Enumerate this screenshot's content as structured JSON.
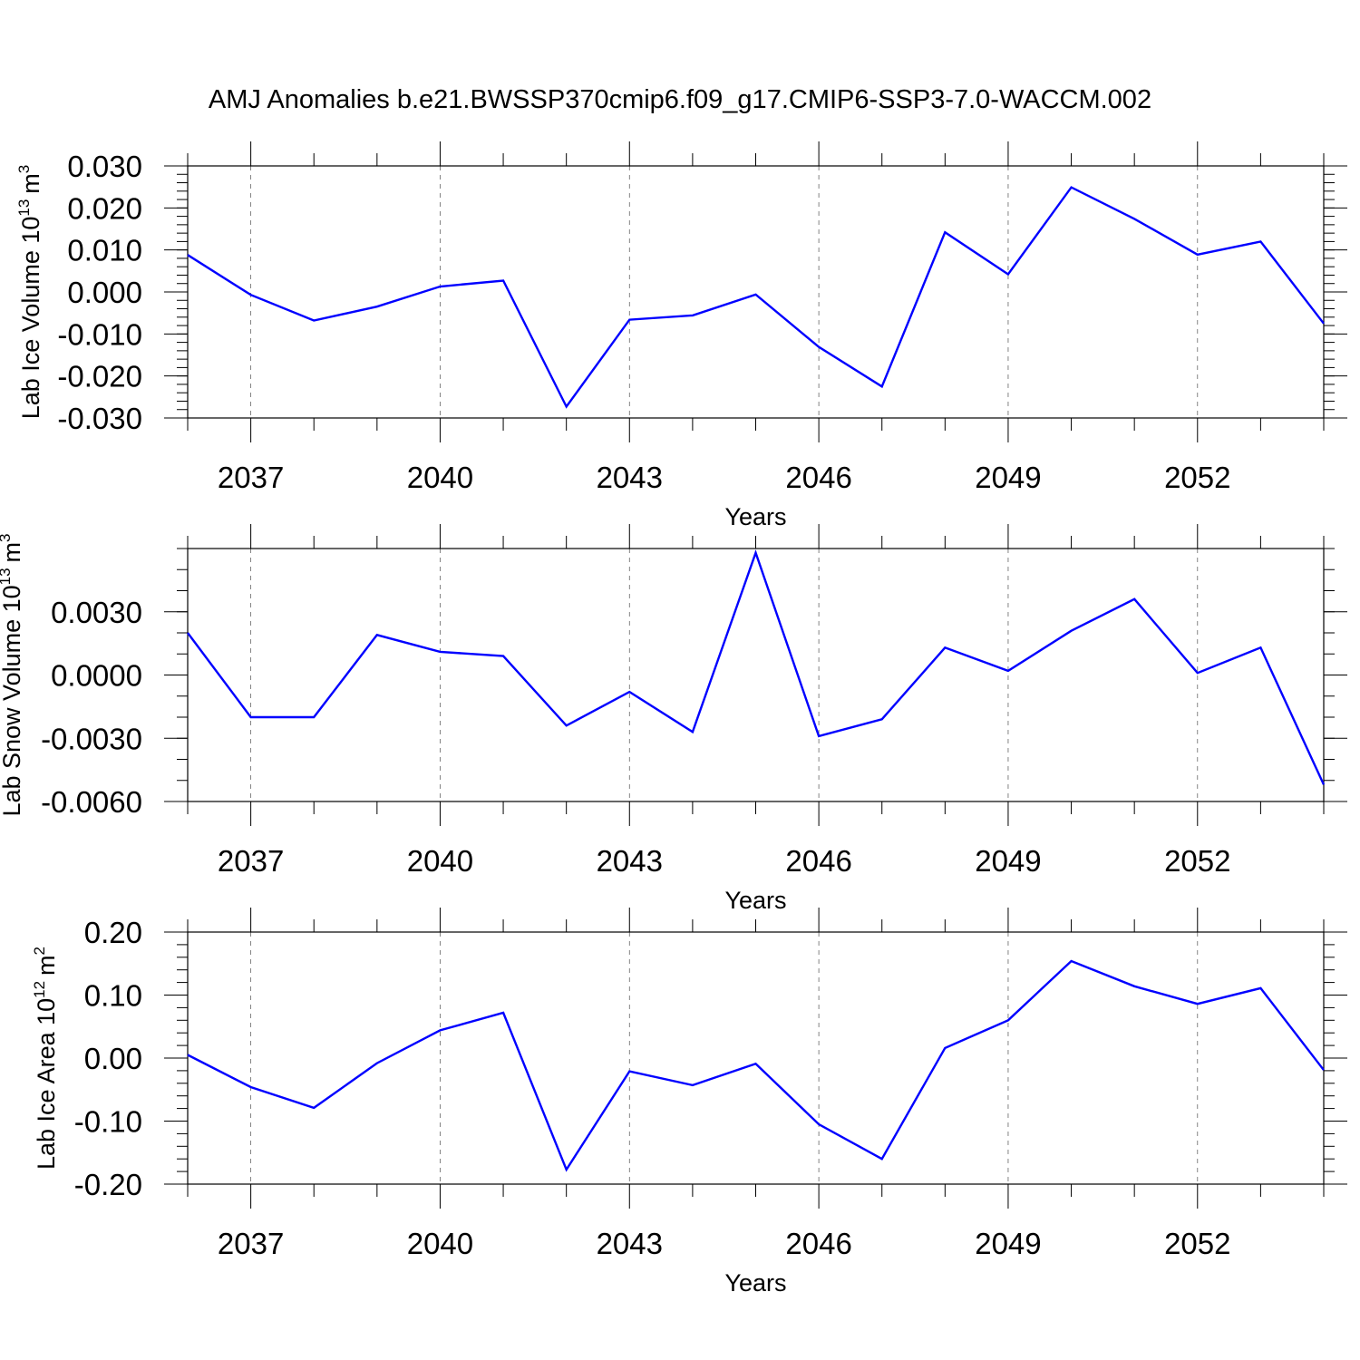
{
  "title": "AMJ Anomalies b.e21.BWSSP370cmip6.f09_g17.CMIP6-SSP3-7.0-WACCM.002",
  "chart_data": [
    {
      "type": "line",
      "ylabel": {
        "text": "Lab Ice Volume 10",
        "exp": "13",
        "unit": "m",
        "unit_exp": "3"
      },
      "xlabel": "Years",
      "xlim": [
        2036,
        2054
      ],
      "ylim": [
        -0.03,
        0.03
      ],
      "xticks": [
        2037,
        2040,
        2043,
        2046,
        2049,
        2052
      ],
      "yticks": [
        -0.03,
        -0.02,
        -0.01,
        0.0,
        0.01,
        0.02,
        0.03
      ],
      "ytick_labels": [
        "-0.030",
        "-0.020",
        "-0.010",
        "0.000",
        "0.010",
        "0.020",
        "0.030"
      ],
      "y_minor_step": 0.002,
      "line_color": "#0000ff",
      "x": [
        2036,
        2037,
        2038,
        2039,
        2040,
        2041,
        2042,
        2043,
        2044,
        2045,
        2046,
        2047,
        2048,
        2049,
        2050,
        2051,
        2052,
        2053,
        2054
      ],
      "values": [
        0.0088,
        -0.0007,
        -0.0068,
        -0.0035,
        0.0013,
        0.0027,
        -0.0273,
        -0.0066,
        -0.0056,
        -0.0006,
        -0.0131,
        -0.0225,
        0.0142,
        0.0042,
        0.0249,
        0.0174,
        0.0089,
        0.012,
        -0.0075
      ]
    },
    {
      "type": "line",
      "ylabel": {
        "text": "Lab Snow Volume 10",
        "exp": "13",
        "unit": "m",
        "unit_exp": "3"
      },
      "xlabel": "Years",
      "xlim": [
        2036,
        2054
      ],
      "ylim": [
        -0.006,
        0.006
      ],
      "xticks": [
        2037,
        2040,
        2043,
        2046,
        2049,
        2052
      ],
      "yticks": [
        -0.006,
        -0.003,
        0.0,
        0.003
      ],
      "ytick_labels": [
        "-0.0060",
        "-0.0030",
        "0.0000",
        "0.0030"
      ],
      "y_minor_step": 0.001,
      "line_color": "#0000ff",
      "x": [
        2036,
        2037,
        2038,
        2039,
        2040,
        2041,
        2042,
        2043,
        2044,
        2045,
        2046,
        2047,
        2048,
        2049,
        2050,
        2051,
        2052,
        2053,
        2054
      ],
      "values": [
        0.002,
        -0.002,
        -0.002,
        0.0019,
        0.0011,
        0.0009,
        -0.0024,
        -0.0008,
        -0.0027,
        0.0058,
        -0.0029,
        -0.0021,
        0.0013,
        0.0002,
        0.0021,
        0.0036,
        0.0001,
        0.0013,
        -0.0052
      ]
    },
    {
      "type": "line",
      "ylabel": {
        "text": "Lab Ice Area 10",
        "exp": "12",
        "unit": "m",
        "unit_exp": "2"
      },
      "xlabel": "Years",
      "xlim": [
        2036,
        2054
      ],
      "ylim": [
        -0.2,
        0.2
      ],
      "xticks": [
        2037,
        2040,
        2043,
        2046,
        2049,
        2052
      ],
      "yticks": [
        -0.2,
        -0.1,
        0.0,
        0.1,
        0.2
      ],
      "ytick_labels": [
        "-0.20",
        "-0.10",
        "0.00",
        "0.10",
        "0.20"
      ],
      "y_minor_step": 0.02,
      "line_color": "#0000ff",
      "x": [
        2036,
        2037,
        2038,
        2039,
        2040,
        2041,
        2042,
        2043,
        2044,
        2045,
        2046,
        2047,
        2048,
        2049,
        2050,
        2051,
        2052,
        2053,
        2054
      ],
      "values": [
        0.005,
        -0.046,
        -0.079,
        -0.008,
        0.044,
        0.072,
        -0.177,
        -0.021,
        -0.043,
        -0.009,
        -0.105,
        -0.16,
        0.016,
        0.06,
        0.154,
        0.114,
        0.086,
        0.111,
        -0.019
      ]
    }
  ]
}
